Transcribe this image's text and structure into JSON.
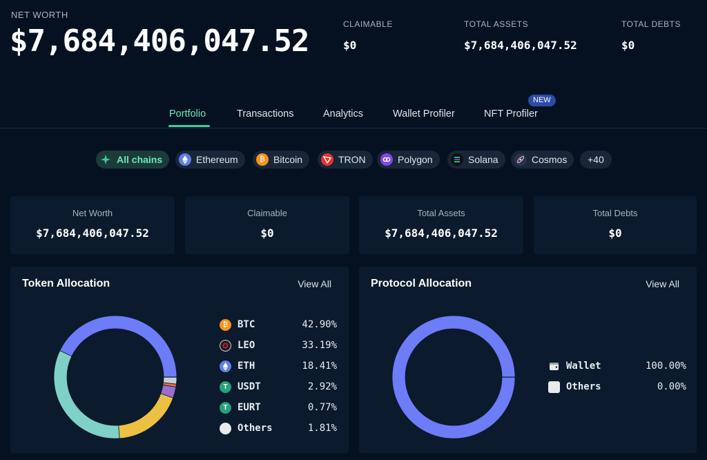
{
  "header": {
    "net_worth_label": "NET WORTH",
    "net_worth_value": "$7,684,406,047.52",
    "stats": [
      {
        "label": "CLAIMABLE",
        "value": "$0"
      },
      {
        "label": "TOTAL ASSETS",
        "value": "$7,684,406,047.52"
      },
      {
        "label": "TOTAL DEBTS",
        "value": "$0"
      }
    ]
  },
  "tabs": [
    {
      "label": "Portfolio",
      "active": true
    },
    {
      "label": "Transactions"
    },
    {
      "label": "Analytics"
    },
    {
      "label": "Wallet Profiler"
    },
    {
      "label": "NFT Profiler",
      "badge": "NEW"
    }
  ],
  "chains": [
    {
      "label": "All chains",
      "icon": "all-chains-icon",
      "color": "#34d399",
      "active": true
    },
    {
      "label": "Ethereum",
      "icon": "ethereum-icon",
      "color": "#627eea"
    },
    {
      "label": "Bitcoin",
      "icon": "bitcoin-icon",
      "color": "#f7931a"
    },
    {
      "label": "TRON",
      "icon": "tron-icon",
      "color": "#e8322b"
    },
    {
      "label": "Polygon",
      "icon": "polygon-icon",
      "color": "#8247e5"
    },
    {
      "label": "Solana",
      "icon": "solana-icon",
      "color": "#111111"
    },
    {
      "label": "Cosmos",
      "icon": "cosmos-icon",
      "color": "#2e3148"
    },
    {
      "label": "+40"
    }
  ],
  "summary_cards": [
    {
      "label": "Net Worth",
      "value": "$7,684,406,047.52"
    },
    {
      "label": "Claimable",
      "value": "$0"
    },
    {
      "label": "Total Assets",
      "value": "$7,684,406,047.52"
    },
    {
      "label": "Total Debts",
      "value": "$0"
    }
  ],
  "token_allocation": {
    "title": "Token Allocation",
    "view_all": "View All",
    "items": [
      {
        "name": "BTC",
        "percent": "42.90%",
        "value": 42.9,
        "icon": "bitcoin-icon",
        "color": "#6d7cf7"
      },
      {
        "name": "LEO",
        "percent": "33.19%",
        "value": 33.19,
        "icon": "leo-icon",
        "color": "#7fd1c7"
      },
      {
        "name": "ETH",
        "percent": "18.41%",
        "value": 18.41,
        "icon": "ethereum-icon",
        "color": "#ecc042"
      },
      {
        "name": "USDT",
        "percent": "2.92%",
        "value": 2.92,
        "icon": "tether-icon",
        "color": "#9b6dd0"
      },
      {
        "name": "EURT",
        "percent": "0.77%",
        "value": 0.77,
        "icon": "tether-icon",
        "color": "#e7703a"
      },
      {
        "name": "Others",
        "percent": "1.81%",
        "value": 1.81,
        "icon": "others-icon",
        "color": "#c9ced6"
      }
    ]
  },
  "protocol_allocation": {
    "title": "Protocol Allocation",
    "view_all": "View All",
    "items": [
      {
        "name": "Wallet",
        "percent": "100.00%",
        "value": 100,
        "icon": "wallet-icon",
        "color": "#6d7cf7"
      },
      {
        "name": "Others",
        "percent": "0.00%",
        "value": 0,
        "icon": "others-icon",
        "color": "#ffffff"
      }
    ]
  }
}
